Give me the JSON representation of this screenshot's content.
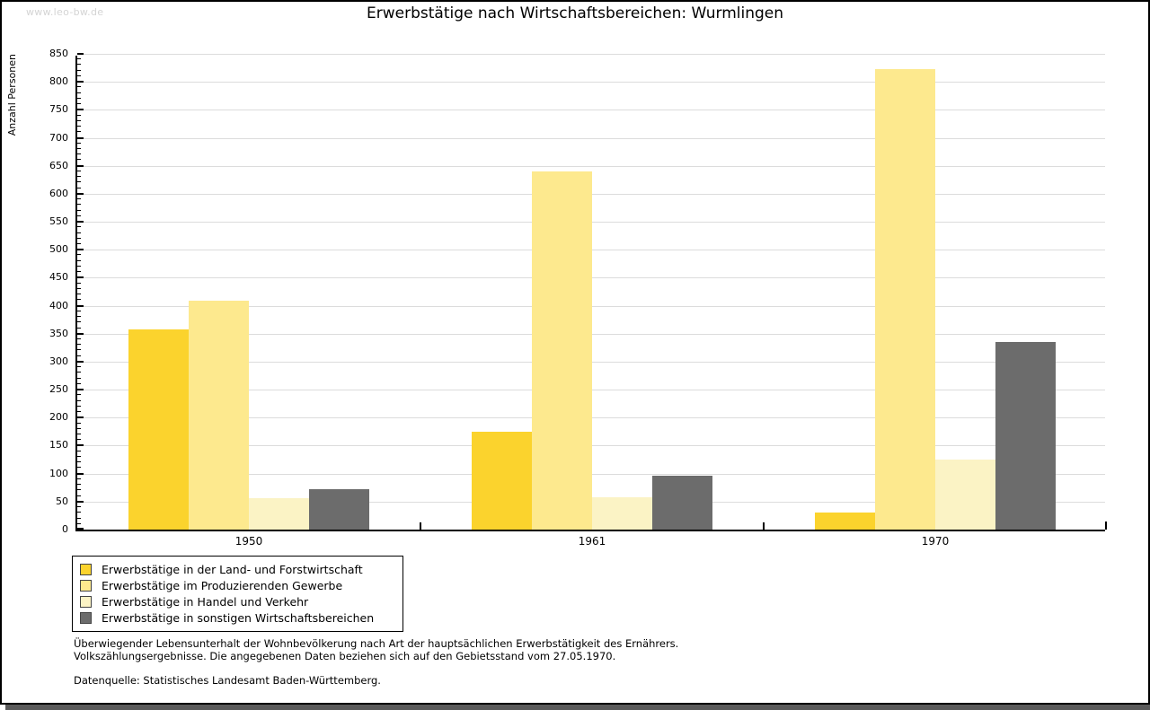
{
  "page": {
    "watermark": "www.leo-bw.de",
    "footer": {
      "line1": "Überwiegender Lebensunterhalt der Wohnbevölkerung nach Art der hauptsächlichen Erwerbstätigkeit des Ernährers.",
      "line2": "Volkszählungsergebnisse. Die angegebenen Daten beziehen sich auf den Gebietsstand vom 27.05.1970.",
      "source": "Datenquelle: Statistisches Landesamt Baden-Württemberg."
    }
  },
  "chart_data": {
    "type": "bar",
    "title": "Erwerbstätige nach Wirtschaftsbereichen: Wurmlingen",
    "xlabel": "",
    "ylabel": "Anzahl Personen",
    "categories": [
      "1950",
      "1961",
      "1970"
    ],
    "series": [
      {
        "name": "Erwerbstätige in der Land- und Forstwirtschaft",
        "color": "#FBD32D",
        "values": [
          358,
          175,
          30
        ]
      },
      {
        "name": "Erwerbstätige im Produzierenden Gewerbe",
        "color": "#FDE98E",
        "values": [
          409,
          640,
          822
        ]
      },
      {
        "name": "Erwerbstätige in Handel und Verkehr",
        "color": "#FBF3C5",
        "values": [
          56,
          57,
          125
        ]
      },
      {
        "name": "Erwerbstätige in sonstigen Wirtschaftsbereichen",
        "color": "#6C6C6C",
        "values": [
          72,
          96,
          335
        ]
      }
    ],
    "ylim": [
      0,
      850
    ],
    "ytick_step": 50,
    "ytick_minor_step": 10,
    "grid": true,
    "gridline_color": "#DCDCDC",
    "legend_position": "bottom-left"
  }
}
